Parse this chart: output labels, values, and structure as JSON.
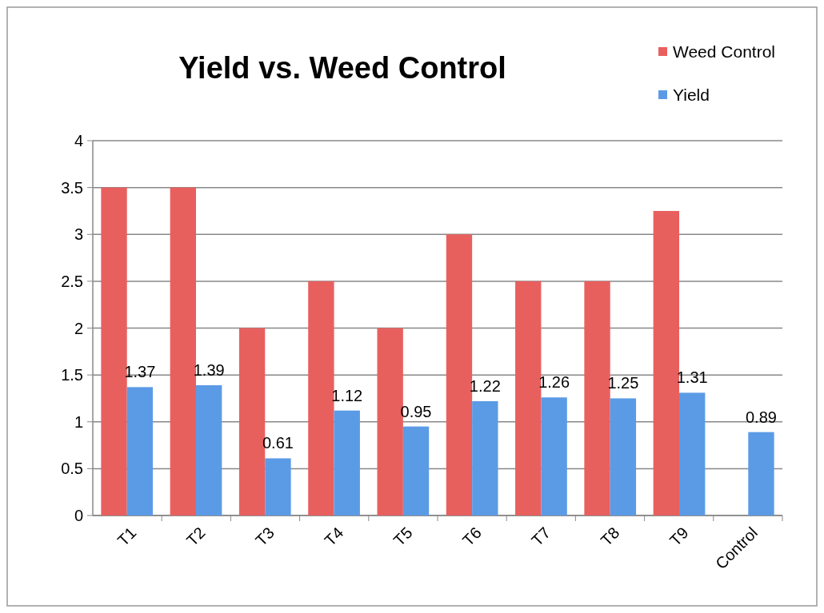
{
  "chart_data": {
    "type": "bar",
    "title": "Yield vs. Weed Control",
    "categories": [
      "T1",
      "T2",
      "T3",
      "T4",
      "T5",
      "T6",
      "T7",
      "T8",
      "T9",
      "Control"
    ],
    "series": [
      {
        "name": "Weed Control",
        "color": "#e8605e",
        "values": [
          3.5,
          3.5,
          2,
          2.5,
          2,
          3,
          2.5,
          2.5,
          3.25,
          null
        ]
      },
      {
        "name": "Yield",
        "color": "#5b9be6",
        "values": [
          1.37,
          1.39,
          0.61,
          1.12,
          0.95,
          1.22,
          1.26,
          1.25,
          1.31,
          0.89
        ],
        "value_labels": [
          "1.37",
          "1.39",
          "0.61",
          "1.12",
          "0.95",
          "1.22",
          "1.26",
          "1.25",
          "1.31",
          "0.89"
        ]
      }
    ],
    "ylim": [
      0,
      4
    ],
    "yticks": [
      0,
      0.5,
      1,
      1.5,
      2,
      2.5,
      3,
      3.5,
      4
    ],
    "grid": "y",
    "legend": "top right"
  }
}
